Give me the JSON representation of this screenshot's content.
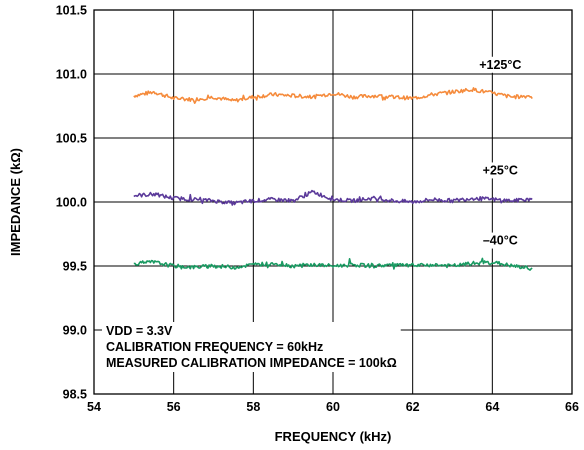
{
  "chart_data": {
    "type": "line",
    "title": "",
    "xlabel": "FREQUENCY (kHz)",
    "ylabel": "IMPEDANCE (kΩ)",
    "xlim": [
      54,
      66
    ],
    "ylim": [
      98.5,
      101.5
    ],
    "xticks": [
      "54",
      "56",
      "58",
      "60",
      "62",
      "64",
      "66"
    ],
    "yticks": [
      "98.5",
      "99.0",
      "99.5",
      "100.0",
      "100.5",
      "101.0",
      "101.5"
    ],
    "grid": true,
    "annotations": [
      "VDD = 3.3V",
      "CALIBRATION FREQUENCY = 60kHz",
      "MEASURED CALIBRATION IMPEDANCE = 100kΩ"
    ],
    "series": [
      {
        "name": "+125°C",
        "color": "#f58b3c",
        "x": [
          55.0,
          55.5,
          56.0,
          56.5,
          57.0,
          57.5,
          58.0,
          58.5,
          59.0,
          59.5,
          60.0,
          60.5,
          61.0,
          61.5,
          62.0,
          62.5,
          63.0,
          63.5,
          64.0,
          64.5,
          65.0
        ],
        "values": [
          100.83,
          100.86,
          100.81,
          100.8,
          100.82,
          100.79,
          100.82,
          100.84,
          100.83,
          100.82,
          100.85,
          100.82,
          100.83,
          100.82,
          100.81,
          100.84,
          100.86,
          100.88,
          100.85,
          100.82,
          100.83
        ]
      },
      {
        "name": "+25°C",
        "color": "#5b3a9a",
        "x": [
          55.0,
          55.5,
          56.0,
          56.5,
          57.0,
          57.5,
          58.0,
          58.5,
          59.0,
          59.5,
          60.0,
          60.5,
          61.0,
          61.5,
          62.0,
          62.5,
          63.0,
          63.5,
          64.0,
          64.5,
          65.0
        ],
        "values": [
          100.05,
          100.06,
          100.03,
          100.02,
          100.01,
          99.99,
          100.01,
          100.02,
          100.01,
          100.08,
          100.02,
          100.01,
          100.03,
          100.01,
          100.0,
          100.02,
          100.01,
          100.03,
          100.02,
          100.01,
          100.02
        ]
      },
      {
        "name": "–40°C",
        "color": "#1a9a62",
        "x": [
          55.0,
          55.5,
          56.0,
          56.5,
          57.0,
          57.5,
          58.0,
          58.5,
          59.0,
          59.5,
          60.0,
          60.5,
          61.0,
          61.5,
          62.0,
          62.5,
          63.0,
          63.5,
          64.0,
          64.5,
          65.0
        ],
        "values": [
          99.52,
          99.53,
          99.5,
          99.49,
          99.5,
          99.49,
          99.51,
          99.52,
          99.5,
          99.51,
          99.5,
          99.51,
          99.5,
          99.51,
          99.5,
          99.51,
          99.5,
          99.52,
          99.53,
          99.5,
          99.48
        ]
      }
    ]
  }
}
